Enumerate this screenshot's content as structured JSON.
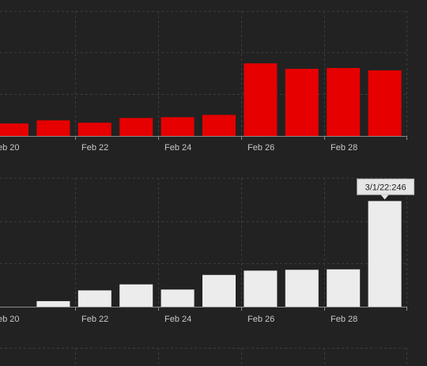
{
  "chart_data": [
    {
      "type": "bar",
      "title": "",
      "xlabel": "",
      "ylabel": "",
      "x_tick_labels": [
        "eb 20",
        "Feb 22",
        "Feb 24",
        "Feb 26",
        "Feb 28"
      ],
      "series": [
        {
          "color": "#e60000",
          "values": [
            16,
            20,
            17,
            23,
            24,
            27,
            93,
            86,
            87,
            84
          ]
        }
      ],
      "ylim": [
        0,
        160
      ],
      "grid": true
    },
    {
      "type": "bar",
      "title": "",
      "xlabel": "",
      "ylabel": "",
      "x_tick_labels": [
        "eb 20",
        "Feb 22",
        "Feb 24",
        "Feb 26",
        "Feb 28"
      ],
      "series": [
        {
          "color": "#ececec",
          "values": [
            0,
            13,
            38,
            52,
            40,
            74,
            84,
            86,
            87,
            246
          ]
        }
      ],
      "ylim": [
        0,
        300
      ],
      "grid": true,
      "tooltip": "3/1/22:246"
    }
  ],
  "colors": {
    "background": "#222222",
    "grid": "#3c3c3c",
    "axis": "#8a8a8a",
    "label": "#c8c8c8",
    "tooltip_bg": "#e6e6e6",
    "tooltip_border": "#aaaaaa"
  }
}
